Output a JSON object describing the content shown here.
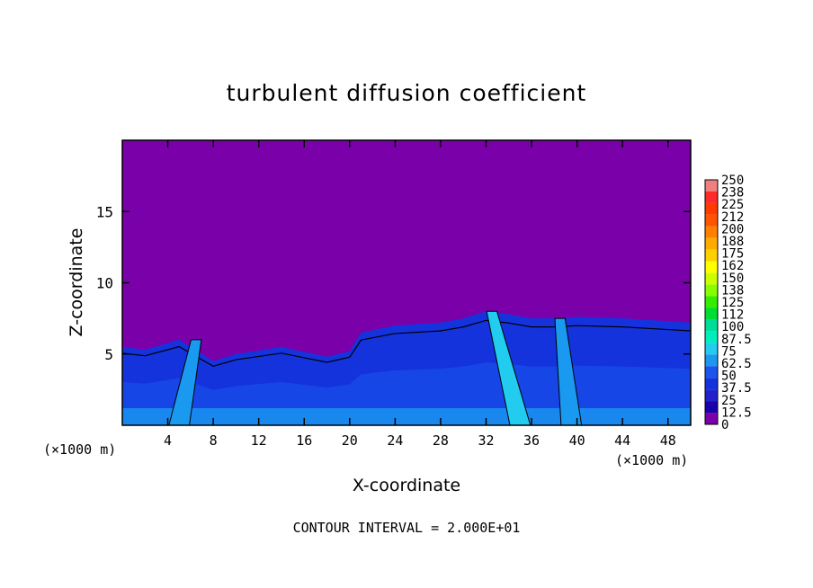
{
  "chart_data": {
    "type": "heatmap",
    "title": "turbulent diffusion coefficient",
    "xlabel": "X-coordinate",
    "ylabel": "Z-coordinate",
    "x_unit": "(×1000 m)",
    "x_unit_right": "(×1000 m)",
    "footer": "CONTOUR INTERVAL = 2.000E+01",
    "xlim": [
      0,
      50
    ],
    "ylim": [
      0,
      20
    ],
    "x_ticks": [
      4,
      8,
      12,
      16,
      20,
      24,
      28,
      32,
      36,
      40,
      44,
      48
    ],
    "y_ticks": [
      5,
      10,
      15
    ],
    "colorbar_labels": [
      "250",
      "238",
      "225",
      "212",
      "200",
      "188",
      "175",
      "162",
      "150",
      "138",
      "125",
      "112",
      "100",
      "87.5",
      "75",
      "62.5",
      "50",
      "37.5",
      "25",
      "12.5",
      "0"
    ],
    "colorbar_colors": [
      "#f08080",
      "#ff2a2a",
      "#ff3c00",
      "#ff5500",
      "#ff8000",
      "#ffaa00",
      "#ffd000",
      "#ffff00",
      "#ccff00",
      "#88ff00",
      "#33ee00",
      "#00dd33",
      "#00dd99",
      "#00eebb",
      "#22ccee",
      "#1a99f0",
      "#1a55ee",
      "#1533dd",
      "#2222cc",
      "#1a00aa",
      "#7a00aa"
    ],
    "background_value": 0,
    "turbulent_layer": {
      "x": [
        0,
        2,
        5,
        8,
        10,
        14,
        18,
        20,
        21,
        24,
        28,
        30,
        32,
        34,
        36,
        38,
        40,
        44,
        48,
        50
      ],
      "top_z": [
        5.5,
        5.3,
        6.0,
        4.5,
        5.0,
        5.5,
        4.8,
        5.2,
        6.5,
        7.0,
        7.2,
        7.5,
        8.0,
        7.8,
        7.5,
        7.5,
        7.6,
        7.5,
        7.3,
        7.2
      ]
    },
    "plumes": [
      {
        "x_bottom": 35.0,
        "x_top": 32.5,
        "z_top": 8.0,
        "value": 75
      },
      {
        "x_bottom": 39.5,
        "x_top": 38.5,
        "z_top": 7.5,
        "value": 62.5
      },
      {
        "x_bottom": 5.0,
        "x_top": 6.5,
        "z_top": 6.0,
        "value": 62.5
      }
    ]
  }
}
